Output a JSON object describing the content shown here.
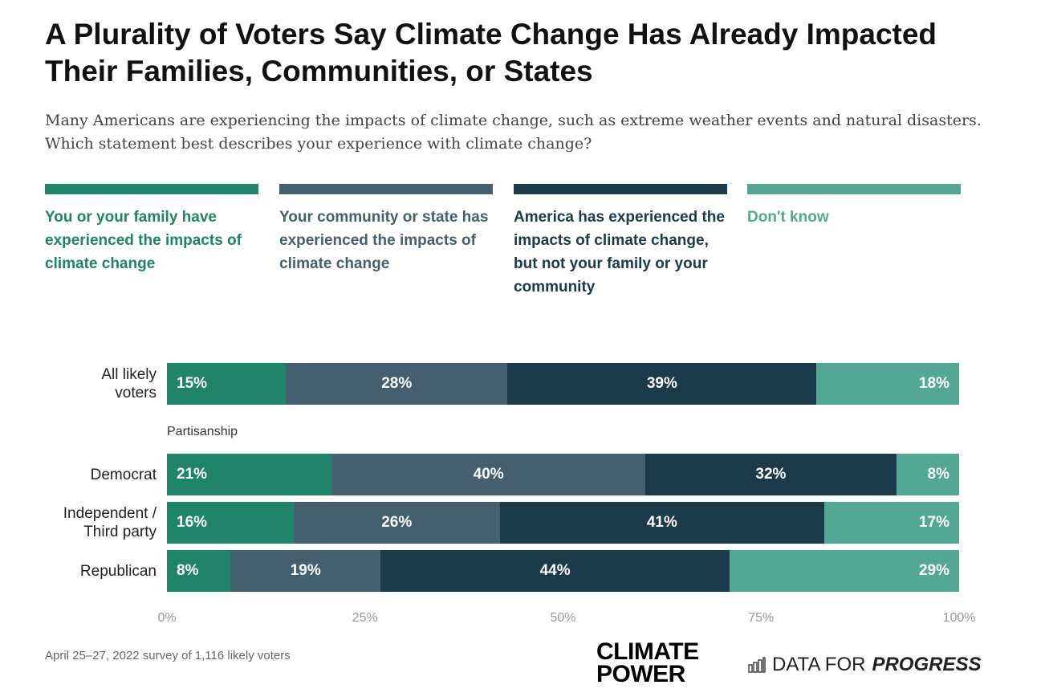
{
  "title": "A Plurality of Voters Say Climate Change Has Already Impacted Their Families, Communities, or States",
  "subtitle": "Many Americans are experiencing the impacts of climate change, such as extreme weather events and natural disasters. Which statement best describes your experience with climate change?",
  "note": "April 25–27, 2022 survey of 1,116 likely voters",
  "logos": {
    "climate_power": "CLIMATE POWER",
    "dfp_a": "DATA FOR",
    "dfp_b": "PROGRESS"
  },
  "chart_data": {
    "type": "bar",
    "orientation": "horizontal-stacked-100",
    "group_label": "Partisanship",
    "categories": [
      "All likely voters",
      "Democrat",
      "Independent / Third party",
      "Republican"
    ],
    "series": [
      {
        "name": "You or your family have experienced the impacts of climate change",
        "color": "#1f8468",
        "values": [
          15,
          21,
          16,
          8
        ]
      },
      {
        "name": "Your community or state has experienced the impacts of climate change",
        "color": "#445f6e",
        "values": [
          28,
          40,
          26,
          19
        ]
      },
      {
        "name": "America has experienced the impacts of climate change, but not your family or your community",
        "color": "#1b3a4a",
        "values": [
          39,
          32,
          41,
          44
        ]
      },
      {
        "name": "Don't know",
        "color": "#52a892",
        "values": [
          18,
          8,
          17,
          29
        ]
      }
    ],
    "xticks": [
      "0%",
      "25%",
      "50%",
      "75%",
      "100%"
    ],
    "xlim": [
      0,
      100
    ],
    "legend": "top"
  }
}
